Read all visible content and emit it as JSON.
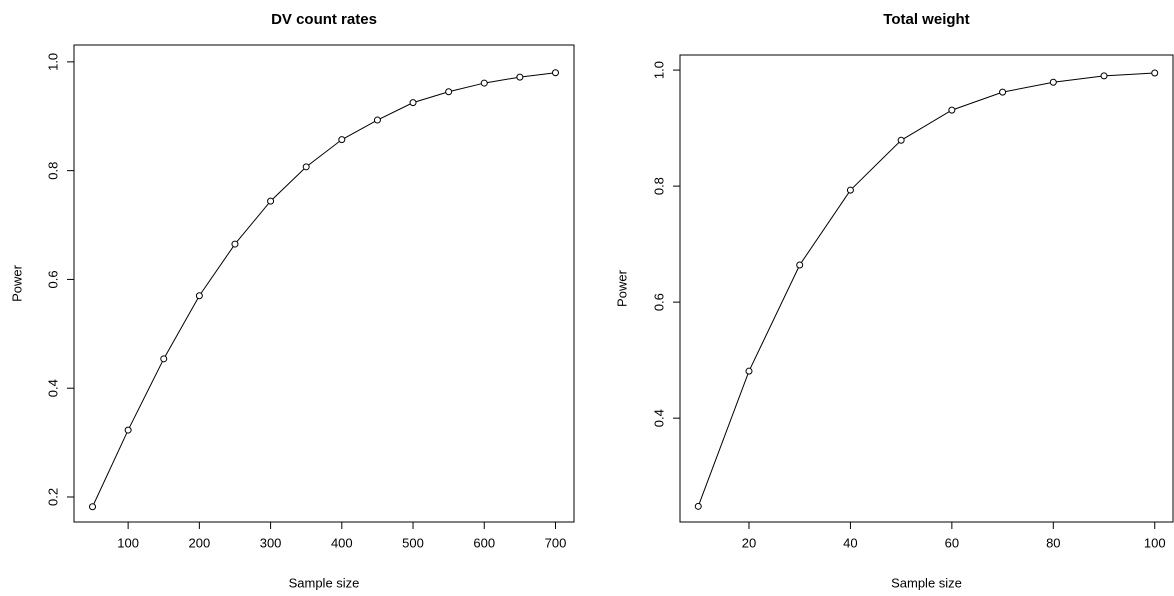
{
  "chart_data": [
    {
      "type": "line",
      "title": "DV count rates",
      "x_label": "Sample size",
      "y_label": "Power",
      "x": [
        50,
        100,
        150,
        200,
        250,
        300,
        350,
        400,
        450,
        500,
        550,
        600,
        650,
        700
      ],
      "series": [
        {
          "color": "#000000",
          "values": [
            0.182,
            0.323,
            0.454,
            0.57,
            0.665,
            0.744,
            0.807,
            0.857,
            0.893,
            0.925,
            0.945,
            0.961,
            0.972,
            0.98
          ]
        }
      ],
      "xlim": [
        24,
        726
      ],
      "xticks": [
        100,
        200,
        300,
        400,
        500,
        600,
        700
      ],
      "ylim": [
        0.154,
        1.031
      ],
      "yticks": [
        0.2,
        0.4,
        0.6,
        0.8,
        {
          "value": 1,
          "label": "1.0"
        }
      ],
      "grid": false
    },
    {
      "type": "line",
      "title": "Total weight",
      "x_label": "Sample size",
      "y_label": "Power",
      "x": [
        10,
        20,
        30,
        40,
        50,
        60,
        70,
        80,
        90,
        100
      ],
      "series": [
        {
          "color": "#000000",
          "values": [
            0.248,
            0.481,
            0.664,
            0.793,
            0.879,
            0.931,
            0.962,
            0.979,
            0.99,
            0.995
          ]
        }
      ],
      "xlim": [
        6.4,
        103.6
      ],
      "xticks": [
        20,
        40,
        60,
        80,
        100
      ],
      "ylim": [
        0.221,
        1.026
      ],
      "yticks": [
        0.4,
        0.6,
        0.8,
        {
          "value": 1,
          "label": "1.0"
        }
      ],
      "grid": false
    }
  ]
}
